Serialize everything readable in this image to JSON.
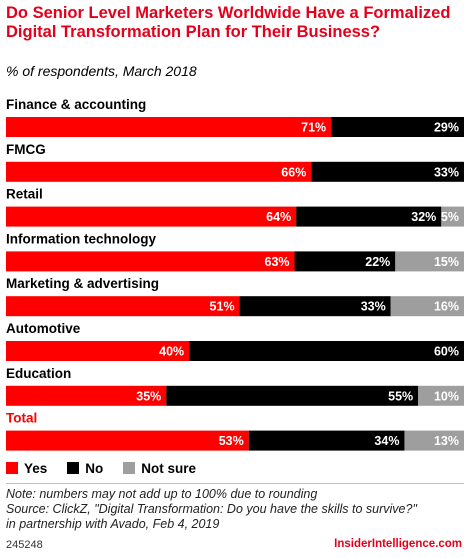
{
  "header": {
    "title": "Do Senior Level Marketers Worldwide Have a Formalized Digital Transformation Plan for Their Business?",
    "subtitle": "% of respondents, March 2018"
  },
  "colors": {
    "yes": "#ff0000",
    "no": "#000000",
    "not_sure": "#9e9e9e",
    "total_label": "#ff0000",
    "accent": "#e3001b"
  },
  "chart_data": {
    "type": "bar",
    "orientation": "horizontal",
    "stacked": true,
    "categories": [
      "Finance & accounting",
      "FMCG",
      "Retail",
      "Information technology",
      "Marketing & advertising",
      "Automotive",
      "Education",
      "Total"
    ],
    "series": [
      {
        "name": "Yes",
        "values": [
          71,
          66,
          64,
          63,
          51,
          40,
          35,
          53
        ]
      },
      {
        "name": "No",
        "values": [
          29,
          33,
          32,
          22,
          33,
          60,
          55,
          34
        ]
      },
      {
        "name": "Not sure",
        "values": [
          0,
          0,
          5,
          15,
          16,
          0,
          10,
          13
        ]
      }
    ],
    "xlim": [
      0,
      100
    ],
    "legend_position": "bottom"
  },
  "legend": {
    "yes": "Yes",
    "no": "No",
    "not_sure": "Not sure"
  },
  "footer": {
    "note": "Note: numbers may not add up to 100% due to rounding",
    "source_line1": "Source: ClickZ, \"Digital Transformation: Do you have the skills to survive?\"",
    "source_line2": "in partnership with Avado, Feb 4, 2019",
    "chart_id": "245248",
    "brand": "InsiderIntelligence.com"
  }
}
